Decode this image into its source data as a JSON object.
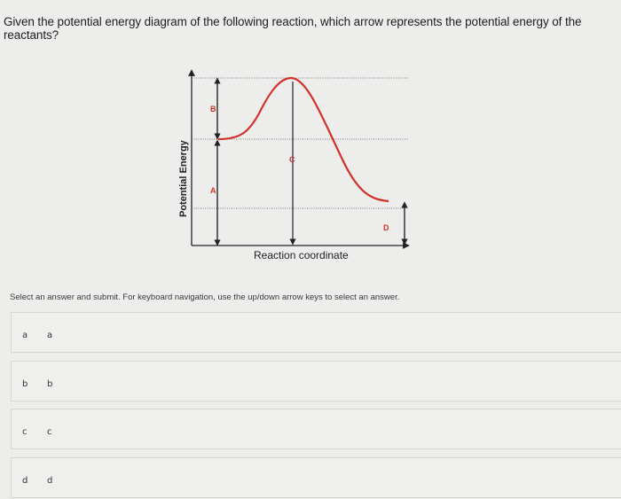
{
  "question": {
    "text": "Given the potential energy diagram of the following reaction, which arrow represents the potential energy of the reactants?"
  },
  "diagram": {
    "y_axis_label": "Potential Energy",
    "x_axis_label": "Reaction coordinate",
    "arrow_labels": {
      "A": "A",
      "B": "B",
      "C": "C",
      "D": "D"
    },
    "curve_color": "#d0322a",
    "arrow_color": "#222222"
  },
  "instructions": "Select an answer and submit. For keyboard navigation, use the up/down arrow keys to select an answer.",
  "options": [
    {
      "key": "a",
      "label": "a"
    },
    {
      "key": "b",
      "label": "b"
    },
    {
      "key": "c",
      "label": "c"
    },
    {
      "key": "d",
      "label": "d"
    }
  ]
}
